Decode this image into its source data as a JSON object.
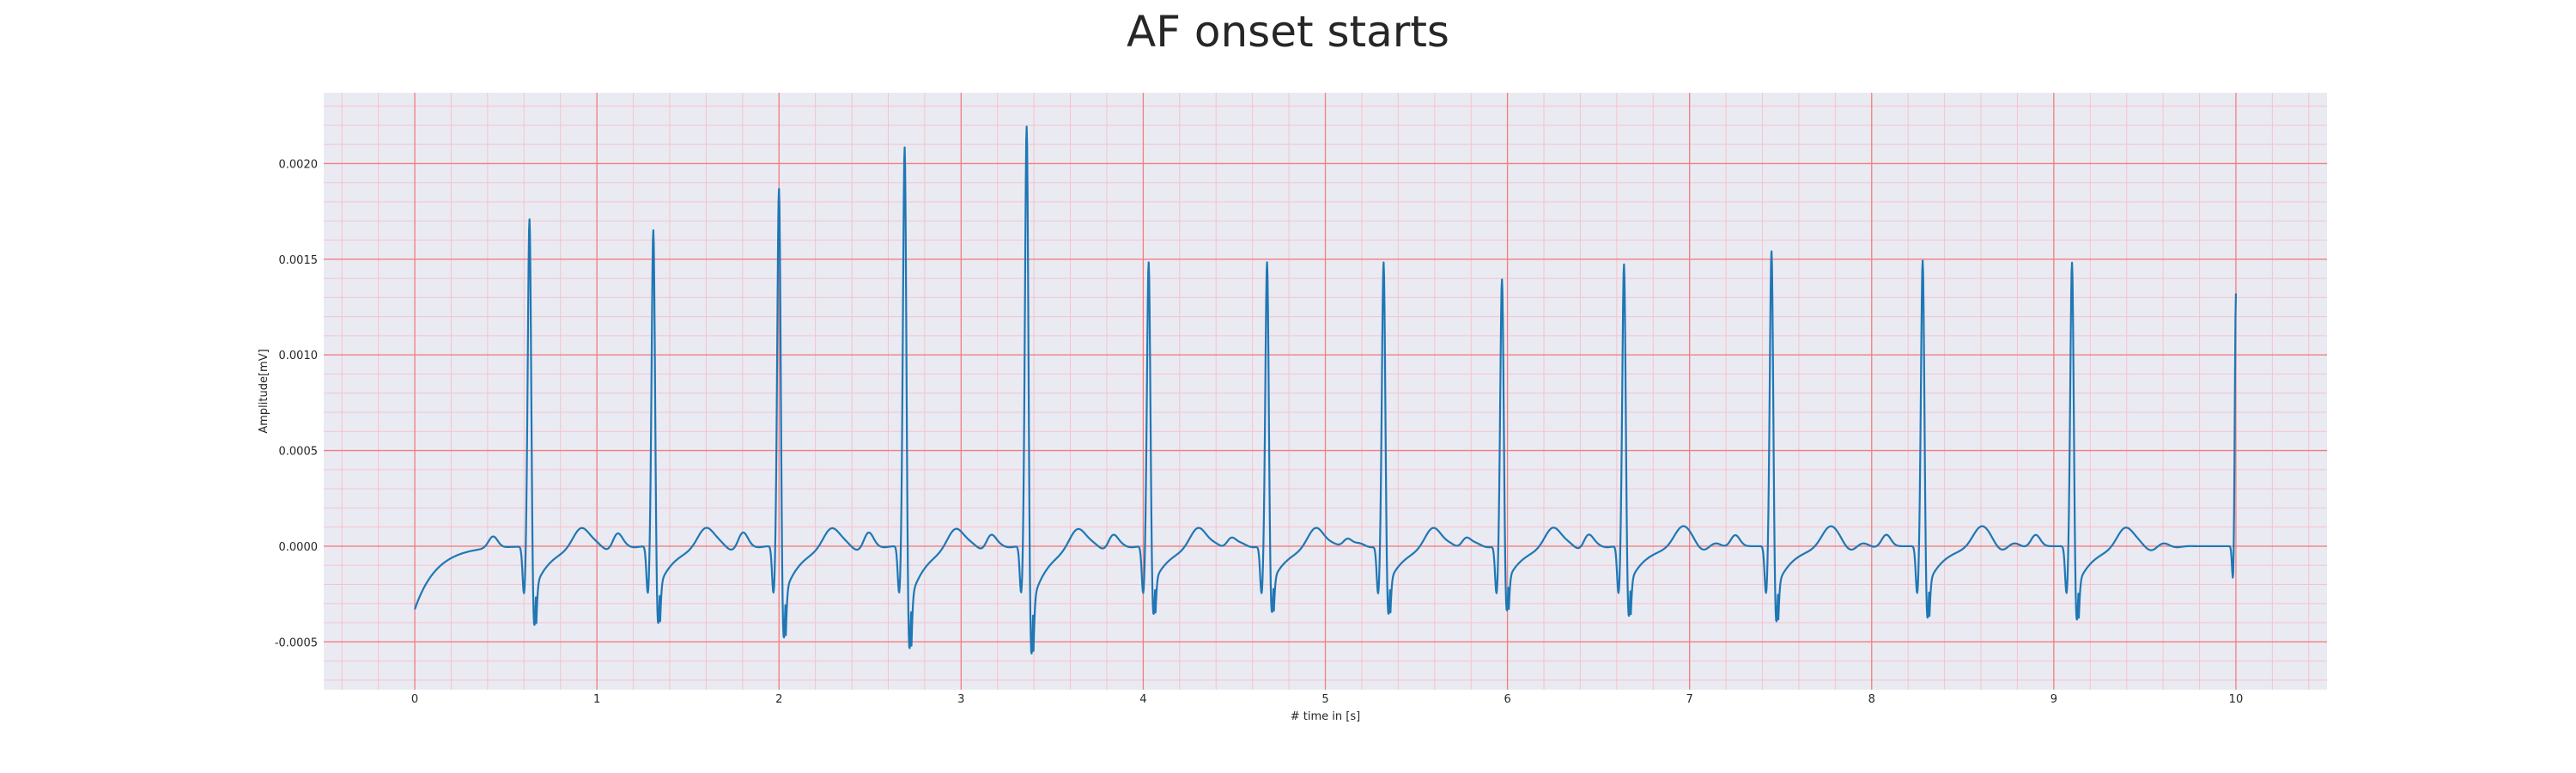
{
  "chart_data": {
    "type": "line",
    "title": "AF onset starts",
    "xlabel": "# time in [s]",
    "ylabel": "Amplitude[mV]",
    "xlim": [
      -0.5,
      10.5
    ],
    "ylim": [
      -0.00075,
      0.00237
    ],
    "x_ticks": [
      0,
      1,
      2,
      3,
      4,
      5,
      6,
      7,
      8,
      9,
      10
    ],
    "x_tick_labels": [
      "0",
      "1",
      "2",
      "3",
      "4",
      "5",
      "6",
      "7",
      "8",
      "9",
      "10"
    ],
    "y_ticks": [
      -0.0005,
      0.0,
      0.0005,
      0.001,
      0.0015,
      0.002
    ],
    "y_tick_labels": [
      "-0.0005",
      "0.0000",
      "0.0005",
      "0.0010",
      "0.0015",
      "0.0020"
    ],
    "grid": true,
    "minor_grid": true,
    "series": [
      {
        "color": "#1f77b4",
        "start_value": -0.00033,
        "beats": [
          {
            "t": 0.63,
            "r": 0.00173,
            "s": -0.00044
          },
          {
            "t": 1.31,
            "r": 0.00167,
            "s": -0.00043
          },
          {
            "t": 2.0,
            "r": 0.00189,
            "s": -0.00051
          },
          {
            "t": 2.69,
            "r": 0.00211,
            "s": -0.00057
          },
          {
            "t": 3.36,
            "r": 0.00222,
            "s": -0.0006
          },
          {
            "t": 4.03,
            "r": 0.0015,
            "s": -0.00038
          },
          {
            "t": 4.68,
            "r": 0.0015,
            "s": -0.00037
          },
          {
            "t": 5.32,
            "r": 0.0015,
            "s": -0.00038
          },
          {
            "t": 5.97,
            "r": 0.00141,
            "s": -0.00036
          },
          {
            "t": 6.64,
            "r": 0.00149,
            "s": -0.00039
          },
          {
            "t": 7.45,
            "r": 0.00156,
            "s": -0.00042
          },
          {
            "t": 8.28,
            "r": 0.00151,
            "s": -0.0004
          },
          {
            "t": 9.1,
            "r": 0.0015,
            "s": -0.00041
          }
        ],
        "end_value": 0.00133
      }
    ]
  },
  "colors": {
    "plot_background": "#eaeaf2",
    "major_grid": "#f08080",
    "minor_grid": "#f4c4cc",
    "line": "#1f77b4"
  }
}
